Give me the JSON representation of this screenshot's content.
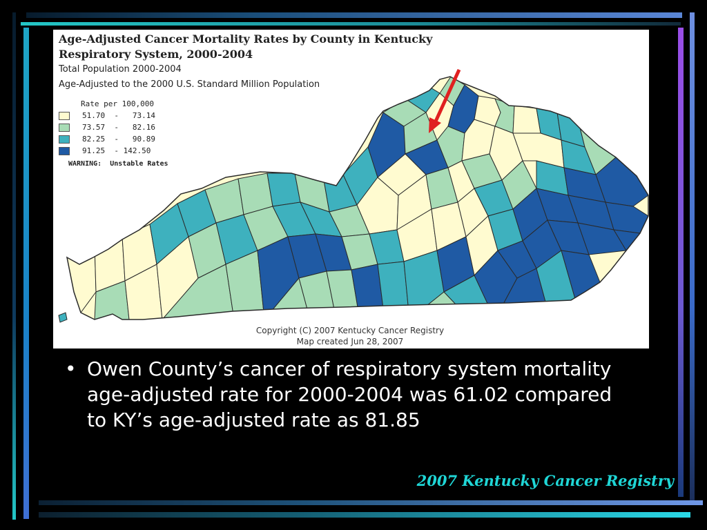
{
  "map": {
    "title_line1": "Age-Adjusted Cancer Mortality Rates by County in Kentucky",
    "title_line2": "Respiratory System, 2000-2004",
    "subtitle1": "Total Population 2000-2004",
    "subtitle2": "Age-Adjusted to the 2000 U.S. Standard Million Population",
    "legend_title": "Rate per 100,000",
    "legend": [
      {
        "label": "51.70  -   73.14",
        "color": "#fffbd0"
      },
      {
        "label": "73.57  -   82.16",
        "color": "#a8dcb6"
      },
      {
        "label": "82.25  -   90.89",
        "color": "#3eb1be"
      },
      {
        "label": "91.25  - 142.50",
        "color": "#1f5aa4"
      }
    ],
    "warning": "WARNING:  Unstable Rates",
    "copyright_line1": "Copyright (C) 2007 Kentucky Cancer Registry",
    "copyright_line2": "Map created Jun 28, 2007",
    "arrow_color": "#e02020",
    "border_color": "#2a2a2a"
  },
  "bullet": {
    "symbol": "•",
    "text": "Owen County’s cancer of respiratory system mortality age-adjusted rate for 2000-2004 was 61.02  compared to KY’s age-adjusted rate as 81.85"
  },
  "source": "2007 Kentucky Cancer Registry"
}
